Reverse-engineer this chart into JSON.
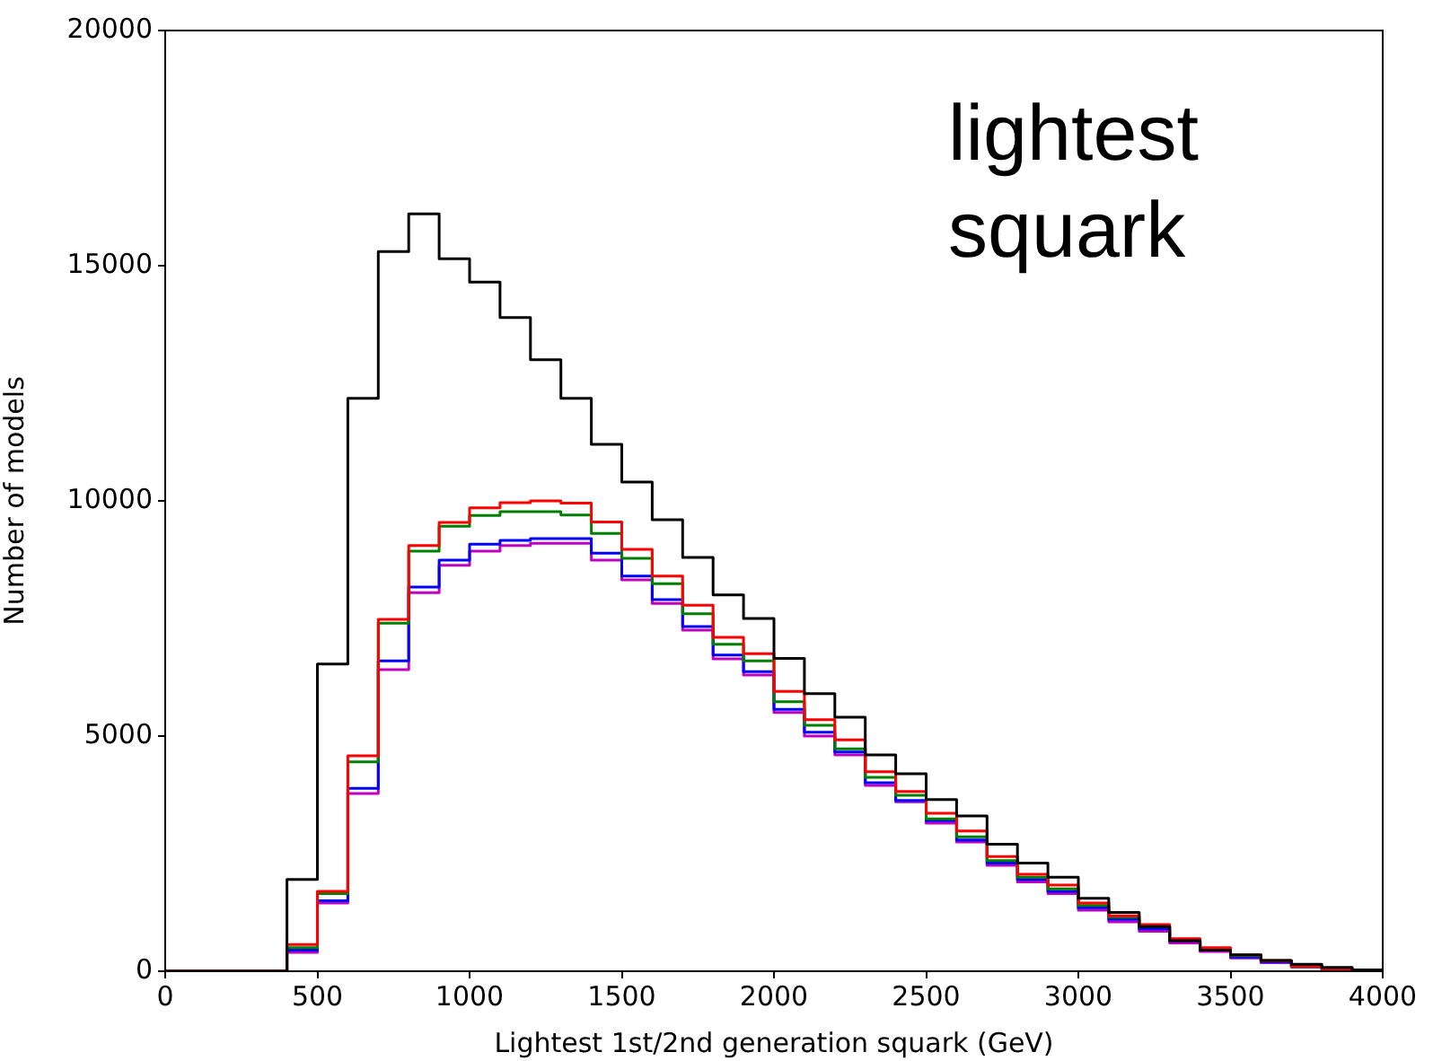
{
  "chart_data": {
    "type": "histogram",
    "xlabel": "Lightest 1st/2nd generation squark (GeV)",
    "ylabel": "Number of models",
    "annotations": [
      "lightest squark"
    ],
    "bins": [
      0,
      100,
      200,
      300,
      400,
      500,
      600,
      700,
      800,
      900,
      1000,
      1100,
      1200,
      1300,
      1400,
      1500,
      1600,
      1700,
      1800,
      1900,
      2000,
      2100,
      2200,
      2300,
      2400,
      2500,
      2600,
      2700,
      2800,
      2900,
      3000,
      3100,
      3200,
      3300,
      3400,
      3500,
      3600,
      3700,
      3800,
      3900,
      4000
    ],
    "series": [
      {
        "color": "#000000",
        "values": [
          0,
          0,
          0,
          0,
          1950,
          6530,
          12180,
          15300,
          16100,
          15150,
          14650,
          13900,
          13000,
          12180,
          11200,
          10400,
          9600,
          8800,
          8000,
          7500,
          6650,
          5900,
          5400,
          4600,
          4200,
          3650,
          3300,
          2700,
          2300,
          2000,
          1550,
          1250,
          950,
          650,
          450,
          350,
          230,
          150,
          80,
          30
        ]
      },
      {
        "color": "#ff0000",
        "values": [
          0,
          0,
          0,
          0,
          570,
          1700,
          4580,
          7480,
          9050,
          9540,
          9850,
          9960,
          10000,
          9950,
          9550,
          8970,
          8400,
          7780,
          7100,
          6750,
          5950,
          5350,
          4920,
          4240,
          3820,
          3360,
          2980,
          2440,
          2060,
          1830,
          1450,
          1180,
          990,
          690,
          500,
          350,
          230,
          110,
          50,
          20
        ]
      },
      {
        "color": "#008000",
        "values": [
          0,
          0,
          0,
          0,
          500,
          1650,
          4450,
          7400,
          8930,
          9460,
          9690,
          9770,
          9770,
          9700,
          9310,
          8780,
          8240,
          7600,
          6950,
          6600,
          5730,
          5230,
          4730,
          4120,
          3740,
          3240,
          2860,
          2350,
          2000,
          1750,
          1400,
          1150,
          950,
          680,
          480,
          330,
          220,
          100,
          50,
          20
        ]
      },
      {
        "color": "#0000ff",
        "values": [
          0,
          0,
          0,
          0,
          450,
          1500,
          3890,
          6600,
          8170,
          8740,
          9080,
          9160,
          9200,
          9200,
          8890,
          8400,
          7900,
          7330,
          6720,
          6370,
          5570,
          5080,
          4660,
          4010,
          3630,
          3200,
          2790,
          2300,
          1950,
          1700,
          1350,
          1100,
          900,
          650,
          450,
          300,
          200,
          100,
          40,
          20
        ]
      },
      {
        "color": "#bf00bf",
        "values": [
          0,
          0,
          0,
          0,
          400,
          1450,
          3780,
          6410,
          8050,
          8630,
          8930,
          9050,
          9100,
          9100,
          8740,
          8320,
          7820,
          7250,
          6640,
          6300,
          5500,
          5000,
          4600,
          3950,
          3600,
          3150,
          2750,
          2250,
          1900,
          1650,
          1300,
          1050,
          850,
          600,
          420,
          280,
          180,
          90,
          30,
          10
        ]
      }
    ],
    "xlim": [
      0,
      4000
    ],
    "xticks": [
      0,
      500,
      1000,
      1500,
      2000,
      2500,
      3000,
      3500,
      4000
    ],
    "ylim": [
      0,
      20000
    ],
    "yticks": [
      0,
      5000,
      10000,
      15000,
      20000
    ]
  }
}
